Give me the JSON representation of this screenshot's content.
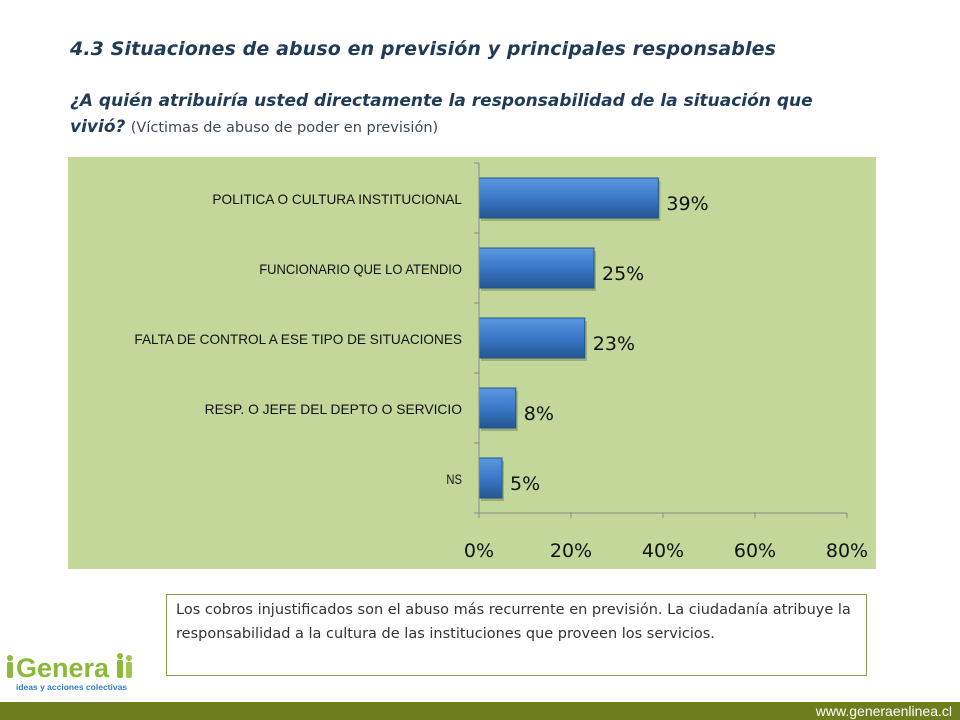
{
  "header": {
    "title": "4.3 Situaciones de abuso en previsión y principales responsables",
    "question": "¿A quién atribuiría usted directamente la responsabilidad de la situación que vivió?",
    "question_note": "(Víctimas de abuso de poder  en  previsión)"
  },
  "chart_data": {
    "type": "bar",
    "orientation": "horizontal",
    "categories": [
      "POLITICA O CULTURA INSTITUCIONAL",
      "FUNCIONARIO QUE LO ATENDIO",
      "FALTA DE CONTROL A ESE TIPO DE SITUACIONES",
      "RESP. O JEFE DEL DEPTO O SERVICIO",
      "NS"
    ],
    "values": [
      39,
      25,
      23,
      8,
      5
    ],
    "data_labels": [
      "39%",
      "25%",
      "23%",
      "8%",
      "5%"
    ],
    "x_ticks": [
      "0%",
      "20%",
      "40%",
      "60%",
      "80%"
    ],
    "xlim": [
      0,
      80
    ],
    "grid": false,
    "legend": "none",
    "colors": {
      "bar": "#3a78c8",
      "bar_dark": "#24568f",
      "background": "#c4d79b"
    }
  },
  "note": {
    "text": "Los cobros injustificados son el abuso más recurrente en previsión. La ciudadanía atribuye la responsabilidad a la cultura de las instituciones que proveen los servicios."
  },
  "logo": {
    "name": "Genera",
    "tagline": "ideas y acciones colectivas"
  },
  "footer": {
    "url": "www.generaenlinea.cl"
  },
  "colors": {
    "title": "#1f3b57",
    "footer_bar": "#6e7e1f",
    "logo_green": "#8cb93a",
    "logo_blue": "#2f7fc1"
  }
}
